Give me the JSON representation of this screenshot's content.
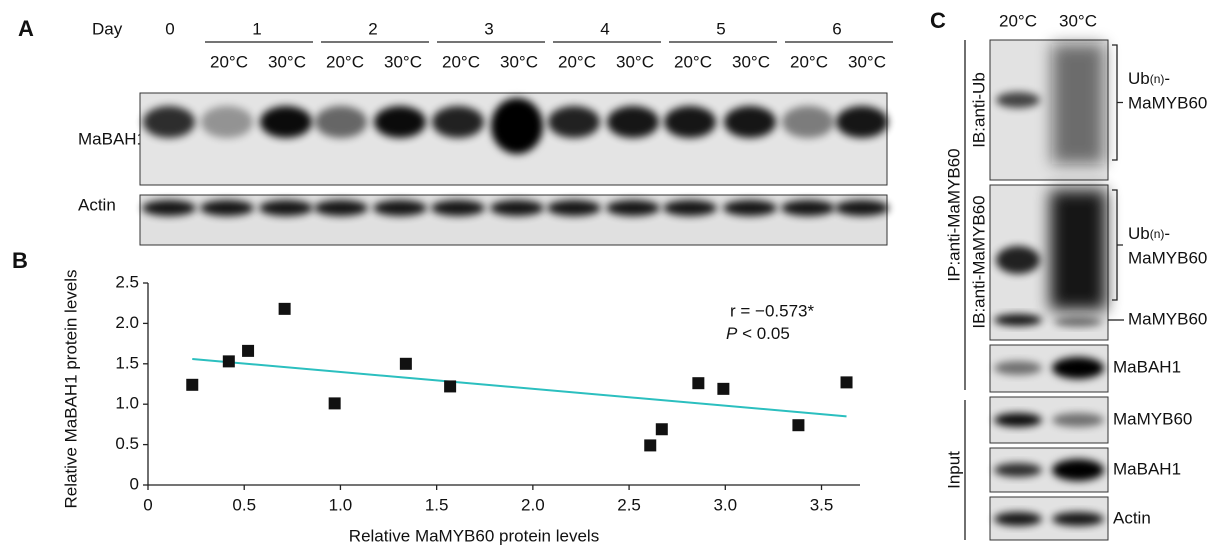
{
  "panel_a": {
    "letter": "A",
    "day_label": "Day",
    "day0": "0",
    "days": [
      {
        "day": "1",
        "temps": [
          "20°C",
          "30°C"
        ]
      },
      {
        "day": "2",
        "temps": [
          "20°C",
          "30°C"
        ]
      },
      {
        "day": "3",
        "temps": [
          "20°C",
          "30°C"
        ]
      },
      {
        "day": "4",
        "temps": [
          "20°C",
          "30°C"
        ]
      },
      {
        "day": "5",
        "temps": [
          "20°C",
          "30°C"
        ]
      },
      {
        "day": "6",
        "temps": [
          "20°C",
          "30°C"
        ]
      }
    ],
    "blots": [
      "MaBAH1",
      "Actin"
    ]
  },
  "chart_data": {
    "type": "scatter",
    "letter": "B",
    "x_label": "Relative MaMYB60 protein levels",
    "y_label": "Relative MaBAH1 protein levels",
    "x": [
      0.23,
      0.42,
      0.52,
      0.71,
      0.97,
      1.34,
      1.57,
      2.61,
      2.67,
      2.86,
      2.99,
      3.38,
      3.63
    ],
    "values": [
      1.24,
      1.53,
      1.66,
      2.18,
      1.01,
      1.5,
      1.22,
      0.49,
      0.69,
      1.26,
      1.19,
      0.74,
      1.27
    ],
    "color": "#111111",
    "trendline": {
      "x": [
        0.23,
        3.63
      ],
      "y": [
        1.56,
        0.85
      ],
      "color": "#2bbfbf"
    },
    "annotation": {
      "r": "r = −0.573*",
      "p_symbol": "P",
      "p_text": " < 0.05"
    },
    "xlim": [
      0,
      3.7
    ],
    "ylim": [
      0,
      2.5
    ],
    "xticks": [
      0,
      0.5,
      {
        "value": 1,
        "label": "1.0"
      },
      1.5,
      {
        "value": 2,
        "label": "2.0"
      },
      2.5,
      {
        "value": 3,
        "label": "3.0"
      },
      3.5
    ],
    "yticks": [
      0,
      0.5,
      {
        "value": 1,
        "label": "1.0"
      },
      1.5,
      {
        "value": 2,
        "label": "2.0"
      },
      2.5
    ],
    "grid": false
  },
  "panel_c": {
    "letter": "C",
    "lanes": [
      "20°C",
      "30°C"
    ],
    "ip_label": "IP:anti-MaMYB60",
    "ib_ub": "IB:anti-Ub",
    "ib_myb": "IB:anti-MaMYB60",
    "input_label": "Input",
    "ub_label": {
      "prefix": "Ub",
      "sub": "(n)",
      "suffix": "-",
      "line2": "MaMYB60"
    },
    "band_labels": [
      "MaMYB60",
      "MaBAH1",
      "MaMYB60",
      "MaBAH1",
      "Actin"
    ]
  }
}
